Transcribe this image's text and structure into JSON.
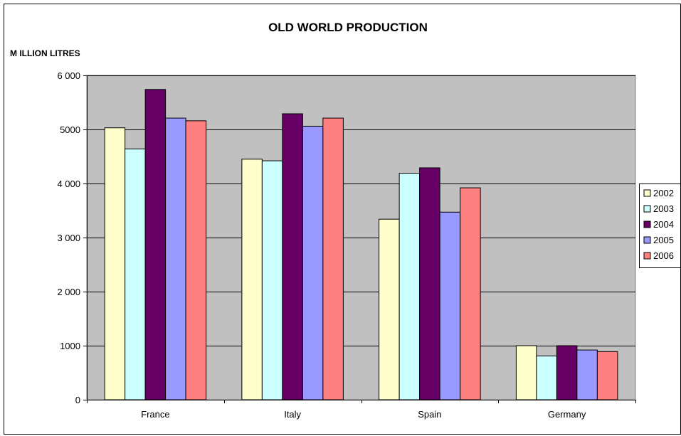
{
  "chart_data": {
    "type": "bar",
    "title": "OLD WORLD PRODUCTION",
    "ylabel": "M ILLION LITRES",
    "xlabel": "",
    "categories": [
      "France",
      "Italy",
      "Spain",
      "Germany"
    ],
    "series": [
      {
        "name": "2002",
        "color": "#FFFFCC",
        "values": [
          5030,
          4450,
          3340,
          1000
        ]
      },
      {
        "name": "2003",
        "color": "#CCFFFF",
        "values": [
          4640,
          4420,
          4190,
          810
        ]
      },
      {
        "name": "2004",
        "color": "#660066",
        "values": [
          5740,
          5290,
          4290,
          1000
        ]
      },
      {
        "name": "2005",
        "color": "#9999FF",
        "values": [
          5210,
          5060,
          3470,
          920
        ]
      },
      {
        "name": "2006",
        "color": "#FF8080",
        "values": [
          5160,
          5210,
          3920,
          890
        ]
      }
    ],
    "ylim": [
      0,
      6000
    ],
    "yticks": [
      {
        "value": 0,
        "label": "0"
      },
      {
        "value": 1000,
        "label": "1000"
      },
      {
        "value": 2000,
        "label": "2 000"
      },
      {
        "value": 3000,
        "label": "3 000"
      },
      {
        "value": 4000,
        "label": "4 000"
      },
      {
        "value": 5000,
        "label": "5000"
      },
      {
        "value": 6000,
        "label": "6 000"
      }
    ],
    "plot_background": "#C0C0C0",
    "grid": true,
    "legend_position": "right"
  }
}
